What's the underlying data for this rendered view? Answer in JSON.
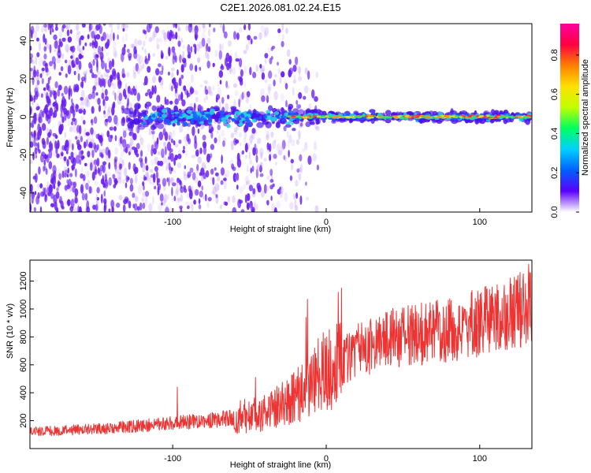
{
  "title": "C2E1.2026.081.02.24.E15",
  "colors": {
    "snr_line": "#ee3333",
    "spectrogram_scatter": "#7a2cf0",
    "spectrogram_band": "#2ad0d0",
    "spectrogram_peak": "#ff3030"
  },
  "chart_data": [
    {
      "id": "spectrogram",
      "type": "heatmap",
      "xlabel": "Height of straight line (km)",
      "ylabel": "Frequency (Hz)",
      "xlim": [
        -193,
        134
      ],
      "ylim": [
        -50,
        49
      ],
      "xticks": [
        -100,
        0,
        100
      ],
      "yticks": [
        -40,
        -20,
        0,
        20,
        40
      ],
      "colorbar": {
        "label": "Normalized spectral amplitude",
        "range": [
          0,
          0.96
        ],
        "ticks": [
          0.0,
          0.2,
          0.4,
          0.6,
          0.8
        ],
        "tick_labels": [
          "0.0",
          "0.2",
          "0.4",
          "0.6",
          "0.8"
        ],
        "colormap": [
          "#ffffff",
          "#5a00ff",
          "#0060ff",
          "#00d0ff",
          "#00ff60",
          "#c0ff00",
          "#ffe000",
          "#ff8000",
          "#ff0040",
          "#ff00a0"
        ]
      },
      "features": {
        "noise_region_x": [
          -193,
          -20
        ],
        "band_center_hz": 0,
        "strong_band_x": [
          -25,
          134
        ]
      }
    },
    {
      "id": "snr",
      "type": "line",
      "xlabel": "Height of straight line (km)",
      "ylabel": "SNR (10 * v/v)",
      "xlim": [
        -193,
        134
      ],
      "ylim": [
        0,
        1350
      ],
      "xticks": [
        -100,
        0,
        100
      ],
      "yticks": [
        200,
        400,
        600,
        800,
        1000,
        1200
      ],
      "trend": {
        "x": [
          -193,
          -150,
          -100,
          -60,
          -40,
          -25,
          -15,
          -5,
          0,
          10,
          20,
          40,
          60,
          80,
          100,
          120,
          134
        ],
        "y": [
          120,
          140,
          180,
          220,
          260,
          330,
          430,
          520,
          560,
          620,
          700,
          780,
          820,
          860,
          900,
          960,
          1020
        ]
      },
      "spikes": [
        {
          "x": -97,
          "y": 440
        },
        {
          "x": -46,
          "y": 510
        },
        {
          "x": -13,
          "y": 940
        },
        {
          "x": -12,
          "y": 1070
        },
        {
          "x": 8,
          "y": 1120
        },
        {
          "x": 10,
          "y": 1150
        },
        {
          "x": 125,
          "y": 1240
        },
        {
          "x": 132,
          "y": 1320
        }
      ]
    }
  ]
}
